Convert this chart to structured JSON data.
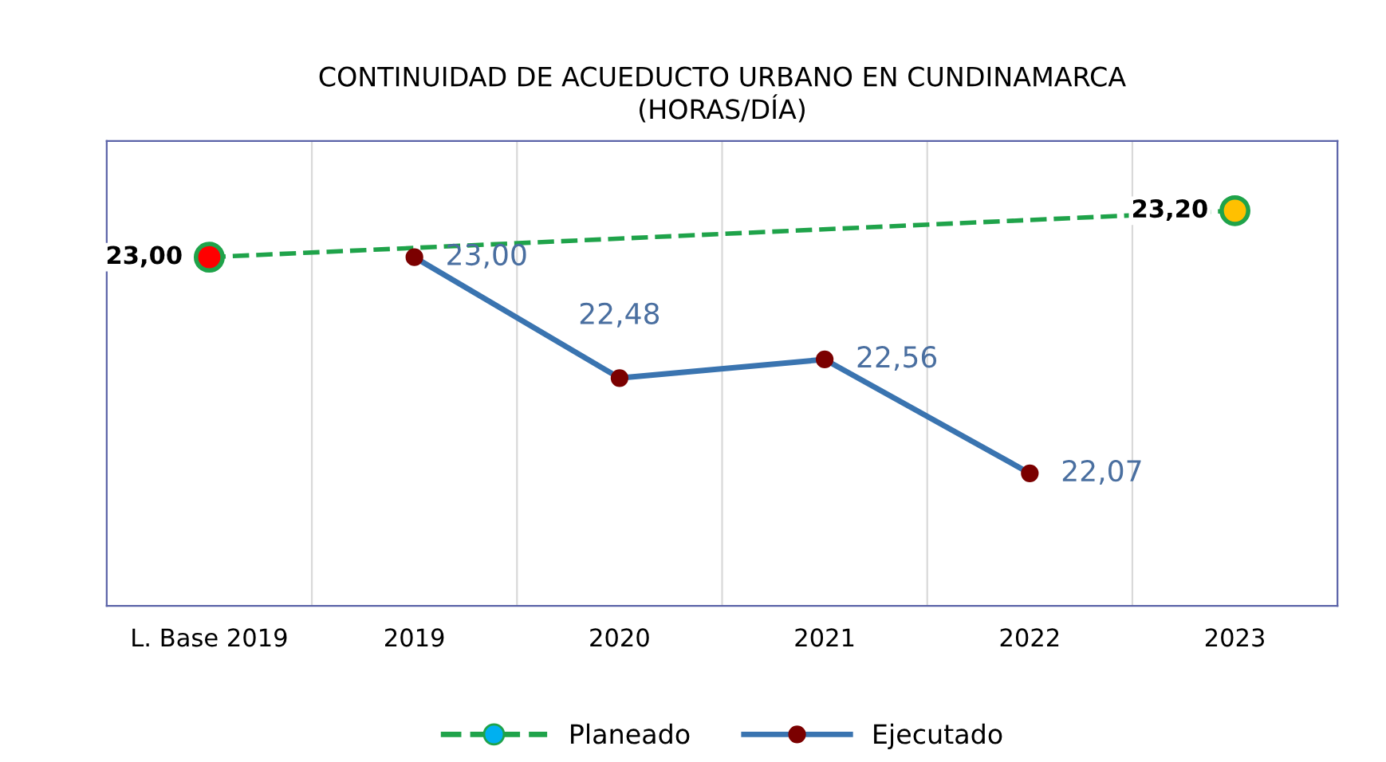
{
  "chart_data": {
    "type": "line",
    "title": "CONTINUIDAD DE ACUEDUCTO URBANO EN CUNDINAMARCA\n(HORAS/DÍA)",
    "categories": [
      "L. Base 2019",
      "2019",
      "2020",
      "2021",
      "2022",
      "2023"
    ],
    "series": [
      {
        "name": "Planeado",
        "color": "#1fa34a",
        "line_style": "dashed",
        "marker": "circle",
        "colors": [
          "#ff0000",
          null,
          null,
          null,
          null,
          "#ffc000"
        ],
        "values": [
          23.0,
          null,
          null,
          null,
          null,
          23.2
        ],
        "value_labels": [
          "23,00",
          null,
          null,
          null,
          null,
          "23,20"
        ]
      },
      {
        "name": "Ejecutado",
        "color": "#3a74b0",
        "line_style": "solid",
        "marker": "circle",
        "values": [
          null,
          23.0,
          22.48,
          22.56,
          22.07,
          null
        ],
        "value_labels": [
          null,
          "23,00",
          "22,48",
          "22,56",
          "22,07",
          null
        ]
      }
    ],
    "ylim": [
      21.5,
      23.5
    ],
    "grid": "x",
    "legend": "bottom",
    "tick_labels": "x"
  }
}
